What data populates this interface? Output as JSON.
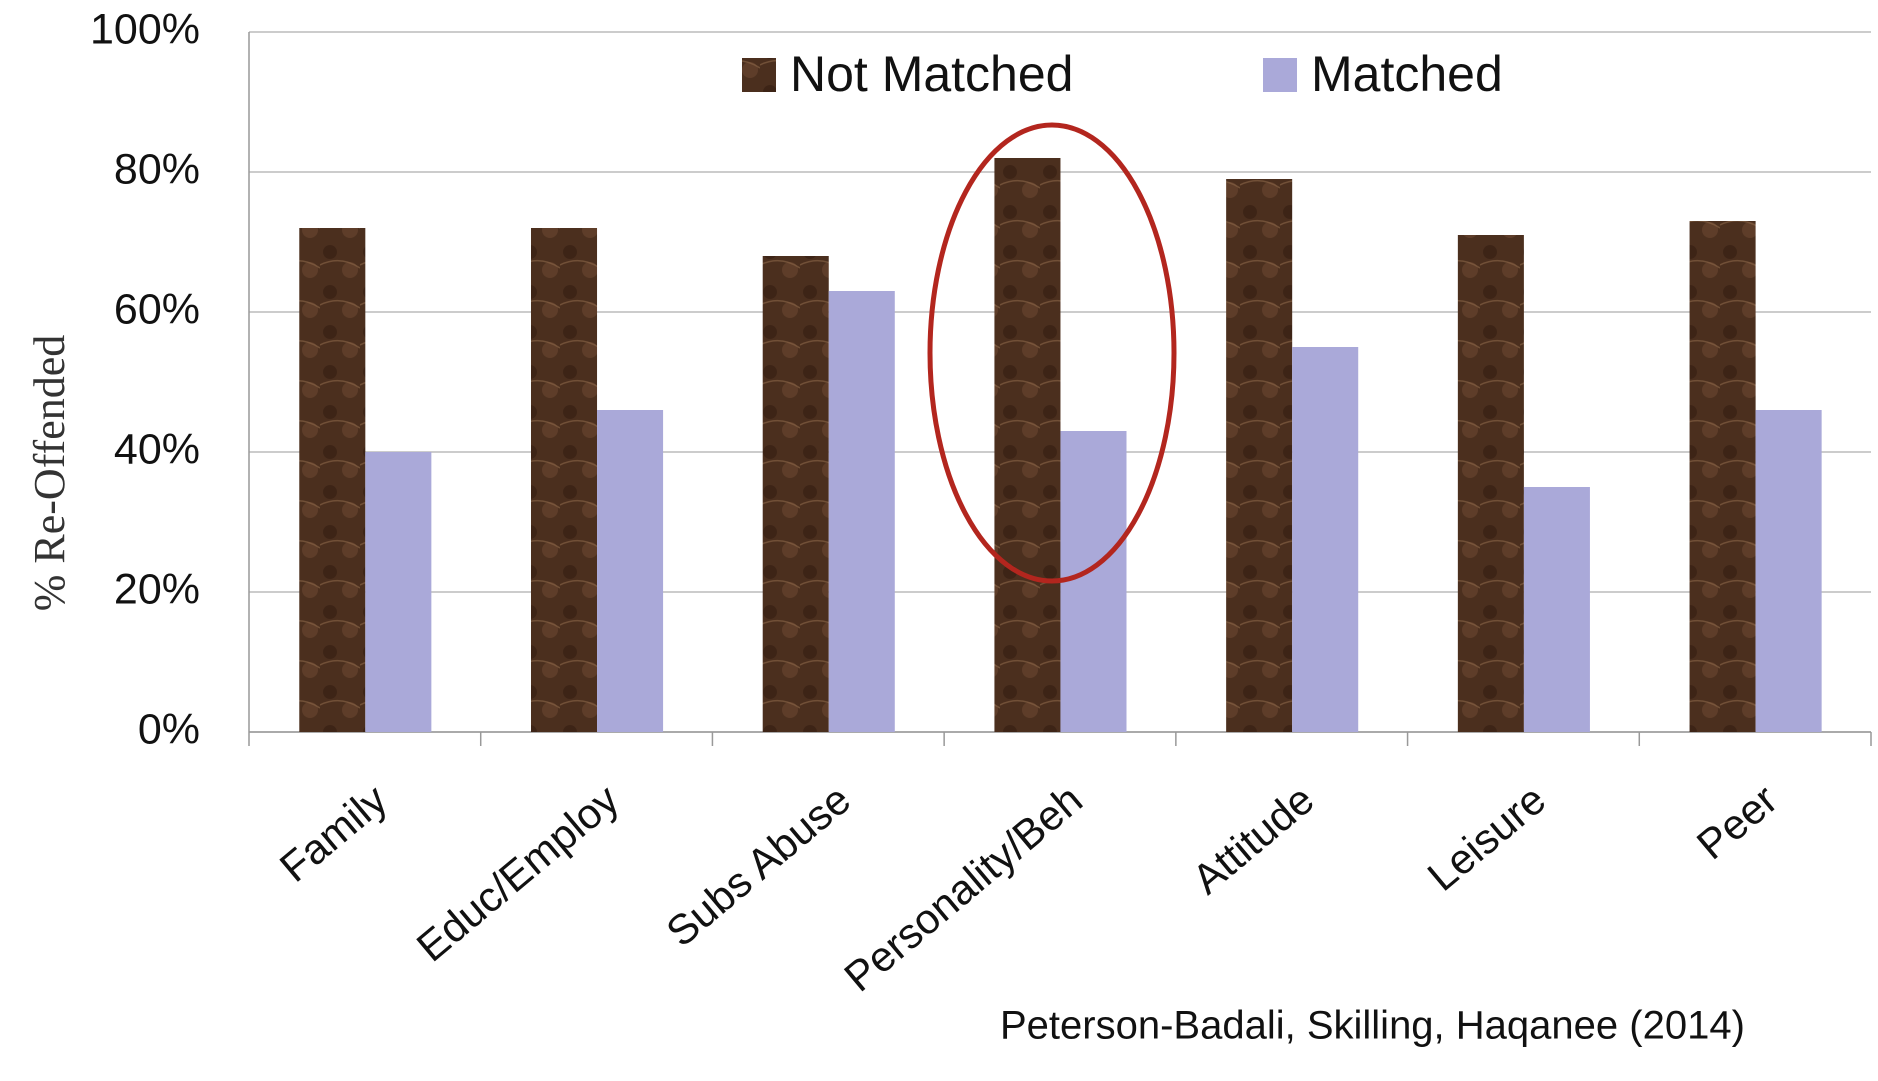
{
  "chart_data": {
    "type": "bar",
    "categories": [
      "Family",
      "Educ/Employ",
      "Subs Abuse",
      "Personality/Beh",
      "Attitude",
      "Leisure",
      "Peer"
    ],
    "series": [
      {
        "name": "Not Matched",
        "color": "#4b2f1e",
        "values": [
          72,
          72,
          68,
          82,
          79,
          71,
          73
        ]
      },
      {
        "name": "Matched",
        "color": "#aaa9d9",
        "values": [
          40,
          46,
          63,
          43,
          55,
          35,
          46
        ]
      }
    ],
    "ylabel": "% Re-Offended",
    "ylim": [
      0,
      100
    ],
    "yticks": [
      {
        "value": 0,
        "label": "0%"
      },
      {
        "value": 20,
        "label": "20%"
      },
      {
        "value": 40,
        "label": "40%"
      },
      {
        "value": 60,
        "label": "60%"
      },
      {
        "value": 80,
        "label": "80%"
      },
      {
        "value": 100,
        "label": "100%"
      }
    ],
    "grid": true,
    "legend": "top",
    "annotation": "Peterson-Badali, Skilling, Haqanee (2014)"
  }
}
